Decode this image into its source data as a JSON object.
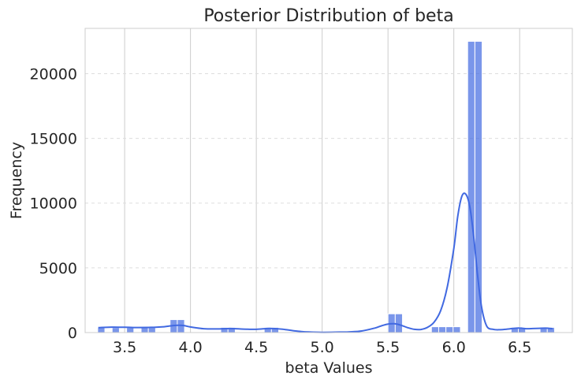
{
  "chart_data": {
    "type": "bar",
    "title": "Posterior Distribution of beta",
    "xlabel": "beta Values",
    "ylabel": "Frequency",
    "xlim": [
      3.2,
      6.9
    ],
    "ylim": [
      0,
      23500
    ],
    "xticks": [
      3.5,
      4.0,
      4.5,
      5.0,
      5.5,
      6.0,
      6.5
    ],
    "xtick_labels": [
      "3.5",
      "4.0",
      "4.5",
      "5.0",
      "5.5",
      "6.0",
      "6.5"
    ],
    "yticks": [
      0,
      5000,
      10000,
      15000,
      20000
    ],
    "ytick_labels": [
      "0",
      "5000",
      "10000",
      "15000",
      "20000"
    ],
    "grid": true,
    "colors": {
      "bar": "#4169e1",
      "kde": "#4169e1"
    },
    "histogram": {
      "bins": [
        {
          "x0": 3.295,
          "x1": 3.35,
          "count": 380
        },
        {
          "x0": 3.35,
          "x1": 3.405,
          "count": 0
        },
        {
          "x0": 3.405,
          "x1": 3.46,
          "count": 380
        },
        {
          "x0": 3.46,
          "x1": 3.515,
          "count": 0
        },
        {
          "x0": 3.515,
          "x1": 3.57,
          "count": 380
        },
        {
          "x0": 3.57,
          "x1": 3.625,
          "count": 0
        },
        {
          "x0": 3.625,
          "x1": 3.68,
          "count": 380
        },
        {
          "x0": 3.68,
          "x1": 3.735,
          "count": 380
        },
        {
          "x0": 3.845,
          "x1": 3.9,
          "count": 1000
        },
        {
          "x0": 3.9,
          "x1": 3.955,
          "count": 1000
        },
        {
          "x0": 4.23,
          "x1": 4.285,
          "count": 400
        },
        {
          "x0": 4.285,
          "x1": 4.34,
          "count": 400
        },
        {
          "x0": 4.56,
          "x1": 4.615,
          "count": 400
        },
        {
          "x0": 4.615,
          "x1": 4.67,
          "count": 400
        },
        {
          "x0": 5.5,
          "x1": 5.555,
          "count": 1450
        },
        {
          "x0": 5.555,
          "x1": 5.61,
          "count": 1450
        },
        {
          "x0": 5.83,
          "x1": 5.885,
          "count": 450
        },
        {
          "x0": 5.885,
          "x1": 5.94,
          "count": 450
        },
        {
          "x0": 5.94,
          "x1": 5.995,
          "count": 450
        },
        {
          "x0": 5.995,
          "x1": 6.05,
          "count": 450
        },
        {
          "x0": 6.105,
          "x1": 6.16,
          "count": 22500
        },
        {
          "x0": 6.16,
          "x1": 6.215,
          "count": 22500
        },
        {
          "x0": 6.435,
          "x1": 6.49,
          "count": 400
        },
        {
          "x0": 6.49,
          "x1": 6.545,
          "count": 400
        },
        {
          "x0": 6.655,
          "x1": 6.71,
          "count": 400
        },
        {
          "x0": 6.71,
          "x1": 6.765,
          "count": 400
        }
      ]
    },
    "kde": {
      "x": [
        3.3,
        3.4,
        3.5,
        3.6,
        3.7,
        3.8,
        3.85,
        3.9,
        3.95,
        4.0,
        4.1,
        4.2,
        4.3,
        4.4,
        4.5,
        4.6,
        4.7,
        4.8,
        4.9,
        5.0,
        5.1,
        5.2,
        5.3,
        5.4,
        5.45,
        5.5,
        5.55,
        5.6,
        5.65,
        5.7,
        5.75,
        5.8,
        5.85,
        5.9,
        5.95,
        6.0,
        6.03,
        6.06,
        6.09,
        6.12,
        6.15,
        6.18,
        6.21,
        6.25,
        6.3,
        6.35,
        6.4,
        6.45,
        6.5,
        6.55,
        6.6,
        6.65,
        6.7,
        6.75
      ],
      "y": [
        380,
        420,
        410,
        390,
        400,
        450,
        520,
        560,
        540,
        430,
        300,
        280,
        310,
        270,
        250,
        320,
        260,
        120,
        40,
        20,
        30,
        50,
        120,
        350,
        520,
        660,
        680,
        560,
        380,
        250,
        240,
        400,
        800,
        1700,
        3500,
        6500,
        9000,
        10500,
        10700,
        9800,
        7500,
        4500,
        2000,
        500,
        250,
        220,
        260,
        320,
        350,
        300,
        310,
        330,
        340,
        300
      ]
    }
  }
}
